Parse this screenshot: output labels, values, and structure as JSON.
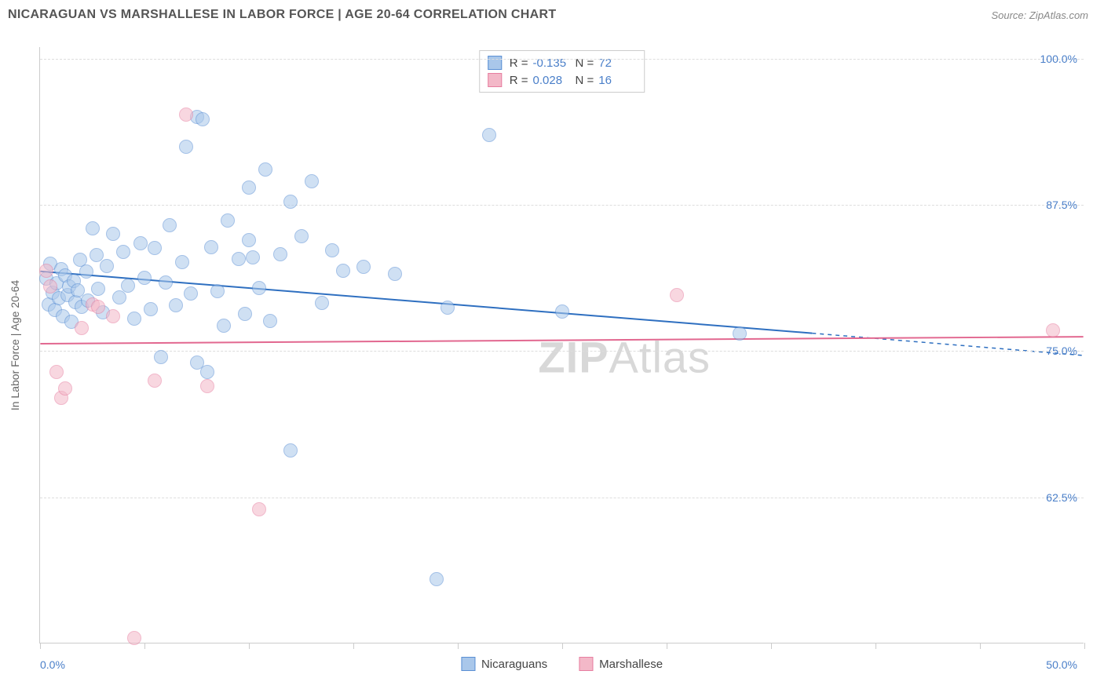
{
  "title": "NICARAGUAN VS MARSHALLESE IN LABOR FORCE | AGE 20-64 CORRELATION CHART",
  "source": "Source: ZipAtlas.com",
  "watermark_bold": "ZIP",
  "watermark_rest": "Atlas",
  "y_axis_title": "In Labor Force | Age 20-64",
  "chart": {
    "type": "scatter",
    "xlim": [
      0,
      50
    ],
    "ylim": [
      50,
      101
    ],
    "x_labels": [
      {
        "value": 0,
        "text": "0.0%"
      },
      {
        "value": 50,
        "text": "50.0%"
      }
    ],
    "x_ticks": [
      0,
      5,
      10,
      15,
      20,
      25,
      30,
      35,
      40,
      45,
      50
    ],
    "y_gridlines": [
      {
        "value": 62.5,
        "text": "62.5%"
      },
      {
        "value": 75.0,
        "text": "75.0%"
      },
      {
        "value": 87.5,
        "text": "87.5%"
      },
      {
        "value": 100.0,
        "text": "100.0%"
      }
    ],
    "marker_radius": 9,
    "background_color": "#ffffff",
    "grid_color": "#dddddd",
    "axis_color": "#cccccc"
  },
  "series": [
    {
      "name": "Nicaraguans",
      "fill_color": "#a9c7ea",
      "stroke_color": "#5a8fd4",
      "fill_opacity": 0.55,
      "R": "-0.135",
      "N": "72",
      "trend": {
        "x1": 0,
        "y1": 81.8,
        "x2": 37,
        "y2": 76.5,
        "color": "#2e6fc0",
        "width": 2,
        "dash_ext_x2": 50,
        "dash_ext_y2": 74.6
      },
      "points": [
        {
          "x": 0.3,
          "y": 81.2
        },
        {
          "x": 0.4,
          "y": 79.0
        },
        {
          "x": 0.5,
          "y": 82.5
        },
        {
          "x": 0.6,
          "y": 80.0
        },
        {
          "x": 0.7,
          "y": 78.5
        },
        {
          "x": 0.8,
          "y": 80.8
        },
        {
          "x": 0.9,
          "y": 79.5
        },
        {
          "x": 1.0,
          "y": 82.0
        },
        {
          "x": 1.1,
          "y": 78.0
        },
        {
          "x": 1.2,
          "y": 81.5
        },
        {
          "x": 1.3,
          "y": 79.8
        },
        {
          "x": 1.4,
          "y": 80.5
        },
        {
          "x": 1.5,
          "y": 77.5
        },
        {
          "x": 1.6,
          "y": 81.0
        },
        {
          "x": 1.7,
          "y": 79.2
        },
        {
          "x": 1.8,
          "y": 80.2
        },
        {
          "x": 1.9,
          "y": 82.8
        },
        {
          "x": 2.0,
          "y": 78.8
        },
        {
          "x": 2.2,
          "y": 81.8
        },
        {
          "x": 2.3,
          "y": 79.3
        },
        {
          "x": 2.5,
          "y": 85.5
        },
        {
          "x": 2.7,
          "y": 83.2
        },
        {
          "x": 2.8,
          "y": 80.3
        },
        {
          "x": 3.0,
          "y": 78.3
        },
        {
          "x": 3.2,
          "y": 82.3
        },
        {
          "x": 3.5,
          "y": 85.0
        },
        {
          "x": 3.8,
          "y": 79.6
        },
        {
          "x": 4.0,
          "y": 83.5
        },
        {
          "x": 4.2,
          "y": 80.6
        },
        {
          "x": 4.5,
          "y": 77.8
        },
        {
          "x": 4.8,
          "y": 84.2
        },
        {
          "x": 5.0,
          "y": 81.3
        },
        {
          "x": 5.3,
          "y": 78.6
        },
        {
          "x": 5.5,
          "y": 83.8
        },
        {
          "x": 5.8,
          "y": 74.5
        },
        {
          "x": 6.0,
          "y": 80.9
        },
        {
          "x": 6.2,
          "y": 85.8
        },
        {
          "x": 6.5,
          "y": 78.9
        },
        {
          "x": 6.8,
          "y": 82.6
        },
        {
          "x": 7.0,
          "y": 92.5
        },
        {
          "x": 7.2,
          "y": 79.9
        },
        {
          "x": 7.5,
          "y": 74.0
        },
        {
          "x": 7.5,
          "y": 95.0
        },
        {
          "x": 8.0,
          "y": 73.2
        },
        {
          "x": 8.2,
          "y": 83.9
        },
        {
          "x": 8.5,
          "y": 80.1
        },
        {
          "x": 8.8,
          "y": 77.2
        },
        {
          "x": 9.0,
          "y": 86.2
        },
        {
          "x": 9.5,
          "y": 82.9
        },
        {
          "x": 9.8,
          "y": 78.2
        },
        {
          "x": 10.0,
          "y": 84.5
        },
        {
          "x": 10.0,
          "y": 89.0
        },
        {
          "x": 10.2,
          "y": 83.0
        },
        {
          "x": 10.5,
          "y": 80.4
        },
        {
          "x": 10.8,
          "y": 90.5
        },
        {
          "x": 11.0,
          "y": 77.6
        },
        {
          "x": 11.5,
          "y": 83.3
        },
        {
          "x": 12.0,
          "y": 87.8
        },
        {
          "x": 12.0,
          "y": 66.5
        },
        {
          "x": 12.5,
          "y": 84.8
        },
        {
          "x": 13.0,
          "y": 89.5
        },
        {
          "x": 13.5,
          "y": 79.1
        },
        {
          "x": 14.0,
          "y": 83.6
        },
        {
          "x": 14.5,
          "y": 81.9
        },
        {
          "x": 15.5,
          "y": 82.2
        },
        {
          "x": 17.0,
          "y": 81.6
        },
        {
          "x": 19.0,
          "y": 55.5
        },
        {
          "x": 19.5,
          "y": 78.7
        },
        {
          "x": 21.5,
          "y": 93.5
        },
        {
          "x": 25.0,
          "y": 78.4
        },
        {
          "x": 33.5,
          "y": 76.5
        },
        {
          "x": 7.8,
          "y": 94.8
        }
      ]
    },
    {
      "name": "Marshallese",
      "fill_color": "#f3b8c8",
      "stroke_color": "#e77ea0",
      "fill_opacity": 0.55,
      "R": "0.028",
      "N": "16",
      "trend": {
        "x1": 0,
        "y1": 75.6,
        "x2": 50,
        "y2": 76.2,
        "color": "#e26890",
        "width": 2
      },
      "points": [
        {
          "x": 0.3,
          "y": 81.9
        },
        {
          "x": 0.5,
          "y": 80.5
        },
        {
          "x": 0.8,
          "y": 73.2
        },
        {
          "x": 1.0,
          "y": 71.0
        },
        {
          "x": 1.2,
          "y": 71.8
        },
        {
          "x": 2.0,
          "y": 77.0
        },
        {
          "x": 2.5,
          "y": 79.0
        },
        {
          "x": 3.5,
          "y": 78.0
        },
        {
          "x": 4.5,
          "y": 50.5
        },
        {
          "x": 5.5,
          "y": 72.5
        },
        {
          "x": 7.0,
          "y": 95.2
        },
        {
          "x": 8.0,
          "y": 72.0
        },
        {
          "x": 10.5,
          "y": 61.5
        },
        {
          "x": 30.5,
          "y": 79.8
        },
        {
          "x": 48.5,
          "y": 76.8
        },
        {
          "x": 2.8,
          "y": 78.8
        }
      ]
    }
  ],
  "legend_bottom": [
    {
      "label": "Nicaraguans",
      "fill": "#a9c7ea",
      "stroke": "#5a8fd4"
    },
    {
      "label": "Marshallese",
      "fill": "#f3b8c8",
      "stroke": "#e77ea0"
    }
  ]
}
